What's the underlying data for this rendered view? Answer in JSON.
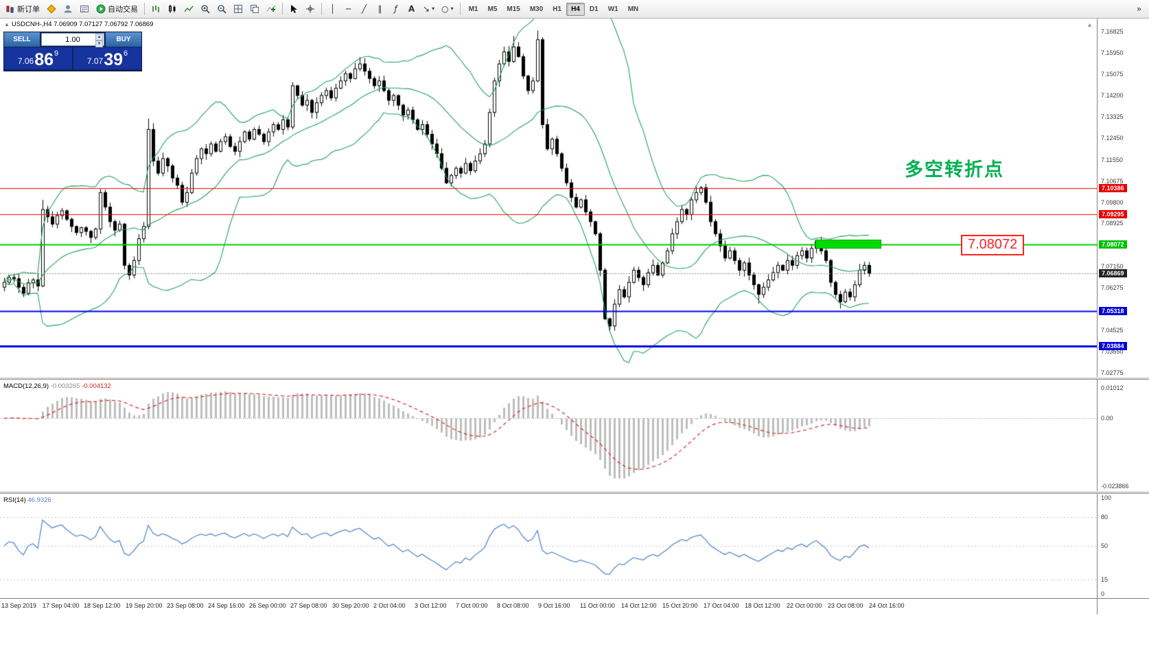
{
  "toolbar": {
    "new_order_label": "新订单",
    "autotrading_label": "自动交易",
    "timeframes": [
      "M1",
      "M5",
      "M15",
      "M30",
      "H1",
      "H4",
      "D1",
      "W1",
      "MN"
    ],
    "active_timeframe": "H4"
  },
  "chart": {
    "symbol_line": "USDCNH-,H4  7.06909 7.07127 7.06792 7.06869",
    "annotation": "多空转折点",
    "level_callout": "7.08072",
    "current_price": 7.06869,
    "price_range": {
      "max": 7.1737,
      "min": 7.026
    },
    "price_axis": {
      "ticks": [
        "7.16825",
        "7.15950",
        "7.15075",
        "7.14200",
        "7.13325",
        "7.12450",
        "7.11550",
        "7.10675",
        "7.09800",
        "7.08925",
        "7.07150",
        "7.06275",
        "7.04525",
        "7.03650",
        "7.02775"
      ],
      "badges": [
        {
          "text": "7.10386",
          "bg": "#e80000"
        },
        {
          "text": "7.09295",
          "bg": "#e80000"
        },
        {
          "text": "7.08072",
          "bg": "#00c000"
        },
        {
          "text": "7.06869",
          "bg": "#222222"
        },
        {
          "text": "7.05318",
          "bg": "#0000d8"
        },
        {
          "text": "7.03884",
          "bg": "#0000d8"
        }
      ]
    },
    "hlines": [
      {
        "price": 7.10386,
        "color": "#ff0000",
        "width": 1
      },
      {
        "price": 7.09295,
        "color": "#ff0000",
        "width": 1
      },
      {
        "price": 7.08072,
        "color": "#00cc00",
        "width": 2
      },
      {
        "price": 7.05318,
        "color": "#0000e0",
        "width": 2
      },
      {
        "price": 7.03884,
        "color": "#0000e0",
        "width": 3
      }
    ],
    "colors": {
      "bollinger": "#1fa05a",
      "bull_body": "#ffffff",
      "bear_body": "#000000",
      "macd_hist": "#bdbdbd",
      "macd_signal": "#dd2222",
      "rsi_line": "#5588cc"
    }
  },
  "trade": {
    "sell_label": "SELL",
    "buy_label": "BUY",
    "volume": "1.00",
    "sell_price": {
      "small": "7.06",
      "big": "86",
      "sup": "9"
    },
    "buy_price": {
      "small": "7.07",
      "big": "39",
      "sup": "6"
    }
  },
  "macd": {
    "name": "MACD(12,26,9)",
    "main_value": "-0.003265",
    "signal_value": "-0.004132",
    "axis": [
      {
        "text": "0.01012",
        "v": 0.01012
      },
      {
        "text": "0.00",
        "v": 0
      },
      {
        "text": "-0.023866",
        "v": -0.023866
      }
    ],
    "range": {
      "max": 0.013,
      "min": -0.0245
    }
  },
  "rsi": {
    "name": "RSI(14)",
    "value": "46.9326",
    "levels": [
      {
        "text": "100",
        "v": 100,
        "line": false
      },
      {
        "text": "80",
        "v": 80,
        "line": true
      },
      {
        "text": "50",
        "v": 50,
        "line": true
      },
      {
        "text": "15",
        "v": 15,
        "line": true
      },
      {
        "text": "0",
        "v": 0,
        "line": false
      }
    ]
  },
  "date_axis": [
    "13 Sep 2019",
    "17 Sep 04:00",
    "18 Sep 12:00",
    "19 Sep 20:00",
    "23 Sep 08:00",
    "24 Sep 16:00",
    "26 Sep 00:00",
    "27 Sep 08:00",
    "30 Sep 20:00",
    "2 Oct 04:00",
    "3 Oct 12:00",
    "7 Oct 00:00",
    "8 Oct 08:00",
    "9 Oct 16:00",
    "11 Oct 00:00",
    "14 Oct 12:00",
    "15 Oct 20:00",
    "17 Oct 04:00",
    "18 Oct 12:00",
    "22 Oct 00:00",
    "23 Oct 08:00",
    "24 Oct 16:00"
  ],
  "chart_data": {
    "type": "candlestick",
    "symbol": "USDCNH-",
    "timeframe": "H4",
    "indicators": [
      "Bollinger Bands(20,2)",
      "MACD(12,26,9)",
      "RSI(14)"
    ],
    "closes": [
      7.065,
      7.067,
      7.0665,
      7.063,
      7.0605,
      7.0648,
      7.066,
      7.0635,
      7.095,
      7.092,
      7.089,
      7.0925,
      7.0945,
      7.091,
      7.088,
      7.0855,
      7.0875,
      7.086,
      7.0835,
      7.087,
      7.102,
      7.096,
      7.09,
      7.0865,
      7.089,
      7.072,
      7.068,
      7.074,
      7.083,
      7.088,
      7.128,
      7.115,
      7.11,
      7.116,
      7.113,
      7.108,
      7.105,
      7.098,
      7.102,
      7.11,
      7.116,
      7.12,
      7.118,
      7.122,
      7.119,
      7.123,
      7.125,
      7.121,
      7.119,
      7.123,
      7.127,
      7.124,
      7.128,
      7.126,
      7.123,
      7.127,
      7.13,
      7.128,
      7.132,
      7.129,
      7.146,
      7.142,
      7.138,
      7.14,
      7.135,
      7.139,
      7.142,
      7.144,
      7.141,
      7.145,
      7.148,
      7.151,
      7.149,
      7.153,
      7.155,
      7.152,
      7.149,
      7.146,
      7.148,
      7.144,
      7.14,
      7.142,
      7.138,
      7.134,
      7.136,
      7.132,
      7.128,
      7.13,
      7.126,
      7.122,
      7.118,
      7.112,
      7.106,
      7.109,
      7.112,
      7.11,
      7.114,
      7.111,
      7.115,
      7.118,
      7.122,
      7.135,
      7.148,
      7.155,
      7.16,
      7.156,
      7.162,
      7.158,
      7.15,
      7.144,
      7.148,
      7.165,
      7.13,
      7.12,
      7.124,
      7.118,
      7.112,
      7.106,
      7.1,
      7.096,
      7.099,
      7.094,
      7.09,
      7.085,
      7.07,
      7.05,
      7.047,
      7.056,
      7.062,
      7.059,
      7.065,
      7.07,
      7.067,
      7.064,
      7.069,
      7.072,
      7.068,
      7.073,
      7.078,
      7.085,
      7.09,
      7.095,
      7.093,
      7.099,
      7.102,
      7.104,
      7.098,
      7.09,
      7.085,
      7.08,
      7.075,
      7.078,
      7.074,
      7.07,
      7.073,
      7.068,
      7.064,
      7.06,
      7.063,
      7.066,
      7.069,
      7.072,
      7.07,
      7.074,
      7.072,
      7.076,
      7.078,
      7.075,
      7.079,
      7.082,
      7.078,
      7.074,
      7.065,
      7.06,
      7.057,
      7.061,
      7.059,
      7.064,
      7.07,
      7.072,
      7.0687
    ]
  }
}
